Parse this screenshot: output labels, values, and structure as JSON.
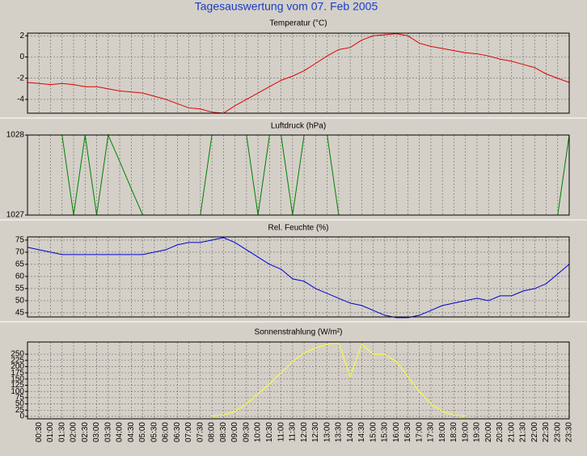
{
  "title": "Tagesauswertung vom 07. Feb 2005",
  "chart_data": [
    {
      "type": "line",
      "title": "Temperatur (°C)",
      "color": "#e00000",
      "values": [
        -2.4,
        -2.5,
        -2.6,
        -2.5,
        -2.6,
        -2.8,
        -2.8,
        -3.0,
        -3.2,
        -3.3,
        -3.4,
        -3.7,
        -4.0,
        -4.4,
        -4.8,
        -4.9,
        -5.2,
        -5.3,
        -4.6,
        -4.0,
        -3.4,
        -2.8,
        -2.2,
        -1.8,
        -1.3,
        -0.6,
        0.1,
        0.7,
        0.9,
        1.6,
        2.0,
        2.1,
        2.2,
        2.0,
        1.3,
        1.0,
        0.8,
        0.6,
        0.4,
        0.3,
        0.1,
        -0.2,
        -0.4,
        -0.7,
        -1.0,
        -1.6,
        -2.0,
        -2.4
      ],
      "ylim": [
        -5.3,
        2.25
      ],
      "yticks": [
        -4,
        -2,
        0,
        2
      ],
      "grid": true
    },
    {
      "type": "line",
      "title": "Luftdruck (hPa)",
      "color": "#008000",
      "values": [
        1028,
        1028,
        1028,
        1028,
        1027,
        1028,
        1027,
        1028,
        1027.67,
        1027.33,
        1027,
        1027,
        1027,
        1027,
        1027,
        1027,
        1028,
        1028,
        1028,
        1028,
        1027,
        1028,
        1028,
        1027,
        1028,
        1028,
        1028,
        1027,
        1027,
        1027,
        1027,
        1027,
        1027,
        1027,
        1027,
        1027,
        1027,
        1027,
        1027,
        1027,
        1027,
        1027,
        1027,
        1027,
        1027,
        1027,
        1027,
        1028
      ],
      "ylim": [
        1027,
        1028
      ],
      "yticks": [
        1027,
        1028
      ],
      "grid": true
    },
    {
      "type": "line",
      "title": "Rel. Feuchte (%)",
      "color": "#0000d0",
      "values": [
        72,
        71,
        70,
        69,
        69,
        69,
        69,
        69,
        69,
        69,
        69,
        70,
        71,
        73,
        74,
        74,
        75,
        76,
        74,
        71,
        68,
        65,
        63,
        59,
        58,
        55,
        53,
        51,
        49,
        48,
        46,
        44,
        43,
        43,
        44,
        46,
        48,
        49,
        50,
        51,
        50,
        52,
        52,
        54,
        55,
        57,
        61,
        65
      ],
      "ylim": [
        43.3,
        76.3
      ],
      "yticks": [
        45,
        50,
        55,
        60,
        65,
        70,
        75
      ],
      "grid": true
    },
    {
      "type": "line",
      "title": "Sonnenstrahlung (W/m²)",
      "color": "#ffff30",
      "values": [
        null,
        null,
        null,
        null,
        null,
        null,
        null,
        null,
        null,
        null,
        null,
        null,
        null,
        null,
        null,
        null,
        0,
        5,
        20,
        50,
        90,
        130,
        175,
        220,
        255,
        275,
        290,
        295,
        160,
        290,
        250,
        250,
        220,
        160,
        100,
        50,
        20,
        5,
        0,
        null,
        null,
        null,
        null,
        null,
        null,
        null,
        null,
        null
      ],
      "ylim": [
        -10,
        299
      ],
      "yticks": [
        0,
        25,
        50,
        75,
        100,
        125,
        150,
        175,
        200,
        225,
        250
      ],
      "grid": true,
      "categories": [
        null,
        "00:30",
        "01:00",
        "01:30",
        "02:00",
        "02:30",
        "03:00",
        "03:30",
        "04:00",
        "04:30",
        "05:00",
        "05:30",
        "06:00",
        "06:30",
        "07:00",
        "07:30",
        "08:00",
        "08:30",
        "09:00",
        "09:30",
        "10:00",
        "10:30",
        "11:00",
        "11:30",
        "12:00",
        "12:30",
        "13:00",
        "13:30",
        "14:00",
        "14:30",
        "15:00",
        "15:30",
        "16:00",
        "16:30",
        "17:00",
        "17:30",
        "18:00",
        "18:30",
        "19:00",
        "19:30",
        "20:00",
        "20:30",
        "21:00",
        "21:30",
        "22:00",
        "22:30",
        "23:00",
        "23:30"
      ]
    }
  ]
}
